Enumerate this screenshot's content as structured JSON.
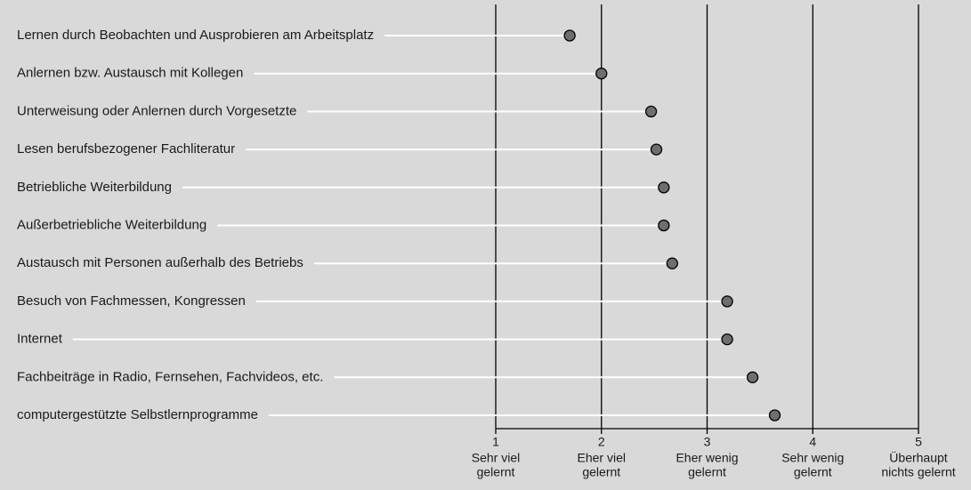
{
  "chart_data": {
    "type": "dot",
    "categories": [
      "Lernen durch Beobachten und Ausprobieren am Arbeitsplatz",
      "Anlernen bzw. Austausch mit Kollegen",
      "Unterweisung oder Anlernen durch Vorgesetzte",
      "Lesen berufsbezogener Fachliteratur",
      "Betriebliche Weiterbildung",
      "Außerbetriebliche Weiterbildung",
      "Austausch mit Personen außerhalb des Betriebs",
      "Besuch von Fachmessen, Kongressen",
      "Internet",
      "Fachbeiträge in Radio, Fernsehen, Fachvideos, etc.",
      "computergestützte Selbstlernprogramme"
    ],
    "values": [
      1.7,
      2.0,
      2.47,
      2.52,
      2.59,
      2.59,
      2.67,
      3.19,
      3.19,
      3.43,
      3.64
    ],
    "color": "#6e6e6e",
    "xlim": [
      1,
      5
    ],
    "xticks": [
      1,
      2,
      3,
      4,
      5
    ],
    "tick_descriptions": [
      [
        "Sehr viel",
        "gelernt"
      ],
      [
        "Eher viel",
        "gelernt"
      ],
      [
        "Eher wenig",
        "gelernt"
      ],
      [
        "Sehr wenig",
        "gelernt"
      ],
      [
        "Überhaupt",
        "nichts gelernt"
      ]
    ],
    "grid": true
  }
}
